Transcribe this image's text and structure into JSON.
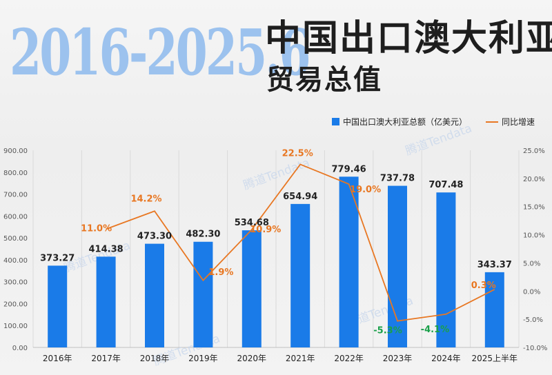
{
  "header": {
    "year_range": "2016-2025.6",
    "title": "中国出口澳大利亚",
    "subtitle": "贸易总值"
  },
  "watermark": "腾道Tendata",
  "colors": {
    "bar": "#1a7be8",
    "line": "#e87722",
    "label_positive": "#e87722",
    "label_negative": "#1aa04a",
    "value_label": "#222222"
  },
  "chart_data": {
    "type": "bar",
    "categories": [
      "2016年",
      "2017年",
      "2018年",
      "2019年",
      "2020年",
      "2021年",
      "2022年",
      "2023年",
      "2024年",
      "2025上半年"
    ],
    "series": [
      {
        "name": "中国出口澳大利亚总额（亿美元）",
        "type": "bar",
        "axis": "left",
        "values": [
          373.27,
          414.38,
          473.3,
          482.3,
          534.68,
          654.94,
          779.46,
          737.78,
          707.48,
          343.37
        ],
        "labels": [
          "373.27",
          "414.38",
          "473.30",
          "482.30",
          "534.68",
          "654.94",
          "779.46",
          "737.78",
          "707.48",
          "343.37"
        ]
      },
      {
        "name": "同比增速",
        "type": "line",
        "axis": "right",
        "values": [
          null,
          11.0,
          14.2,
          1.9,
          10.9,
          22.5,
          19.0,
          -5.3,
          -4.1,
          0.3
        ],
        "labels": [
          "",
          "11.0%",
          "14.2%",
          "1.9%",
          "10.9%",
          "22.5%",
          "19.0%",
          "-5.3%",
          "-4.1%",
          "0.3%"
        ]
      }
    ],
    "ylim_left": [
      0,
      900
    ],
    "yticks_left": [
      "0.00",
      "100.00",
      "200.00",
      "300.00",
      "400.00",
      "500.00",
      "600.00",
      "700.00",
      "800.00",
      "900.00"
    ],
    "ylim_right": [
      -10,
      25
    ],
    "yticks_right": [
      "-10.0%",
      "-5.0%",
      "0.0%",
      "5.0%",
      "10.0%",
      "15.0%",
      "20.0%",
      "25.0%"
    ],
    "grid": "vertical",
    "legend_position": "top-right"
  }
}
